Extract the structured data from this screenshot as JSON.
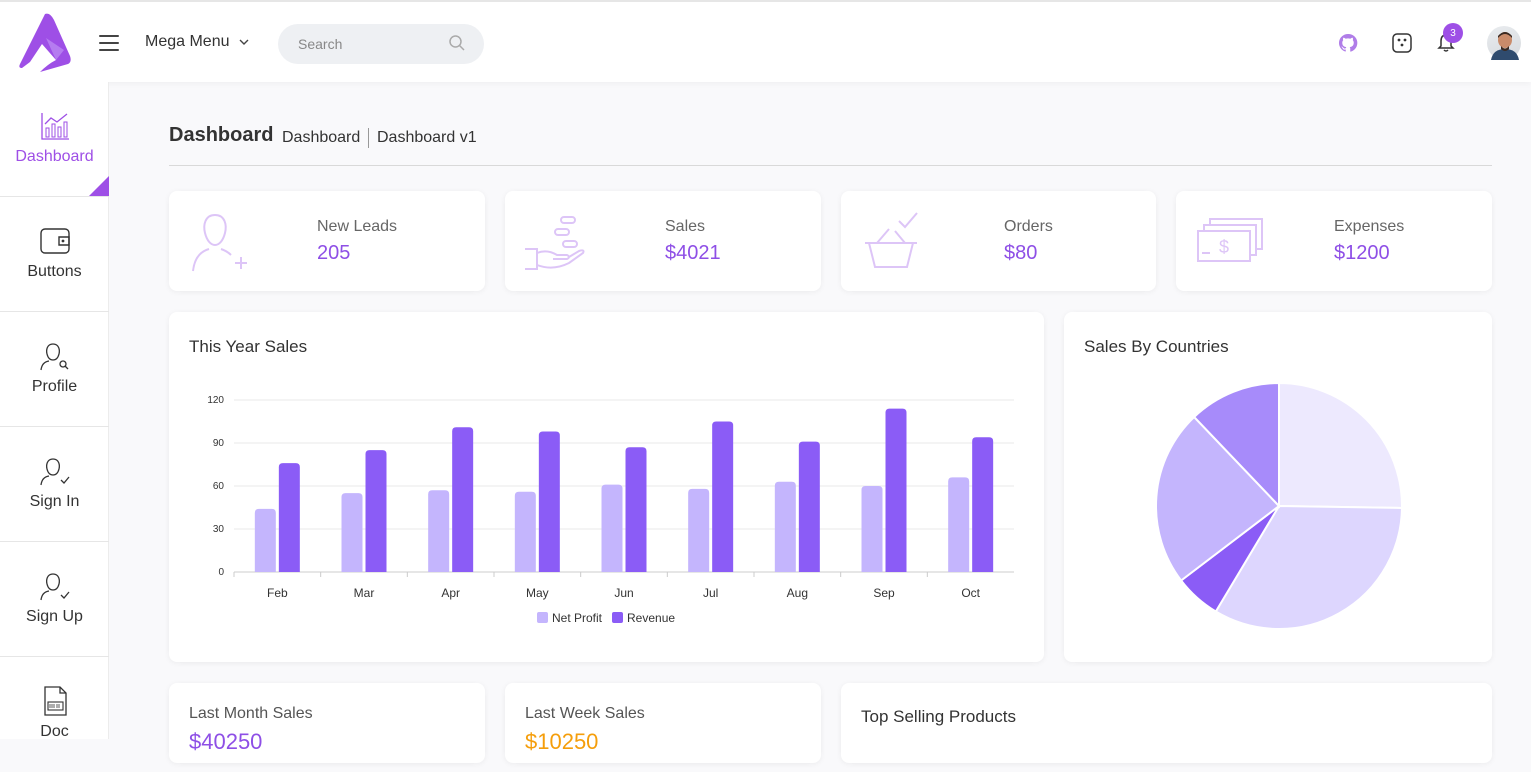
{
  "topbar": {
    "mega_menu": "Mega Menu",
    "search_placeholder": "Search",
    "notification_count": "3",
    "icons": [
      "github-icon",
      "dice-icon",
      "bell-icon"
    ]
  },
  "sidebar": {
    "items": [
      {
        "label": "Dashboard",
        "icon": "chart-icon",
        "active": true
      },
      {
        "label": "Buttons",
        "icon": "wallet-icon"
      },
      {
        "label": "Profile",
        "icon": "profile-icon"
      },
      {
        "label": "Sign In",
        "icon": "user-check-icon"
      },
      {
        "label": "Sign Up",
        "icon": "user-check-icon"
      },
      {
        "label": "Doc",
        "icon": "doc-icon"
      }
    ]
  },
  "header": {
    "title": "Dashboard",
    "breadcrumb": [
      "Dashboard",
      "Dashboard v1"
    ]
  },
  "stats": [
    {
      "label": "New Leads",
      "value": "205",
      "icon": "user-add-icon"
    },
    {
      "label": "Sales",
      "value": "$4021",
      "icon": "hand-coins-icon"
    },
    {
      "label": "Orders",
      "value": "$80",
      "icon": "basket-icon"
    },
    {
      "label": "Expenses",
      "value": "$1200",
      "icon": "banknotes-icon"
    }
  ],
  "panels": {
    "year_sales_title": "This Year Sales",
    "countries_title": "Sales By Countries",
    "last_month_label": "Last Month Sales",
    "last_month_value": "$40250",
    "last_week_label": "Last Week Sales",
    "last_week_value": "$10250",
    "top_selling_title": "Top Selling Products"
  },
  "colors": {
    "accent": "#9e4fe6",
    "net_profit": "#c4b5fd",
    "revenue": "#8b5cf6",
    "orange": "#f59e0b"
  },
  "chart_data": [
    {
      "type": "bar",
      "title": "This Year Sales",
      "categories": [
        "Feb",
        "Mar",
        "Apr",
        "May",
        "Jun",
        "Jul",
        "Aug",
        "Sep",
        "Oct"
      ],
      "series": [
        {
          "name": "Net Profit",
          "values": [
            44,
            55,
            57,
            56,
            61,
            58,
            63,
            60,
            66
          ]
        },
        {
          "name": "Revenue",
          "values": [
            76,
            85,
            101,
            98,
            87,
            105,
            91,
            114,
            94
          ]
        }
      ],
      "yticks": [
        0,
        30,
        60,
        90,
        120
      ],
      "ylim": [
        0,
        120
      ],
      "grid": true,
      "legend": "bottom"
    },
    {
      "type": "pie",
      "title": "Sales By Countries",
      "values": [
        25,
        33,
        6,
        23,
        12
      ],
      "colors": [
        "#ede9fe",
        "#ddd6fe",
        "#8b5cf6",
        "#c4b5fd",
        "#a78bfa"
      ]
    }
  ]
}
